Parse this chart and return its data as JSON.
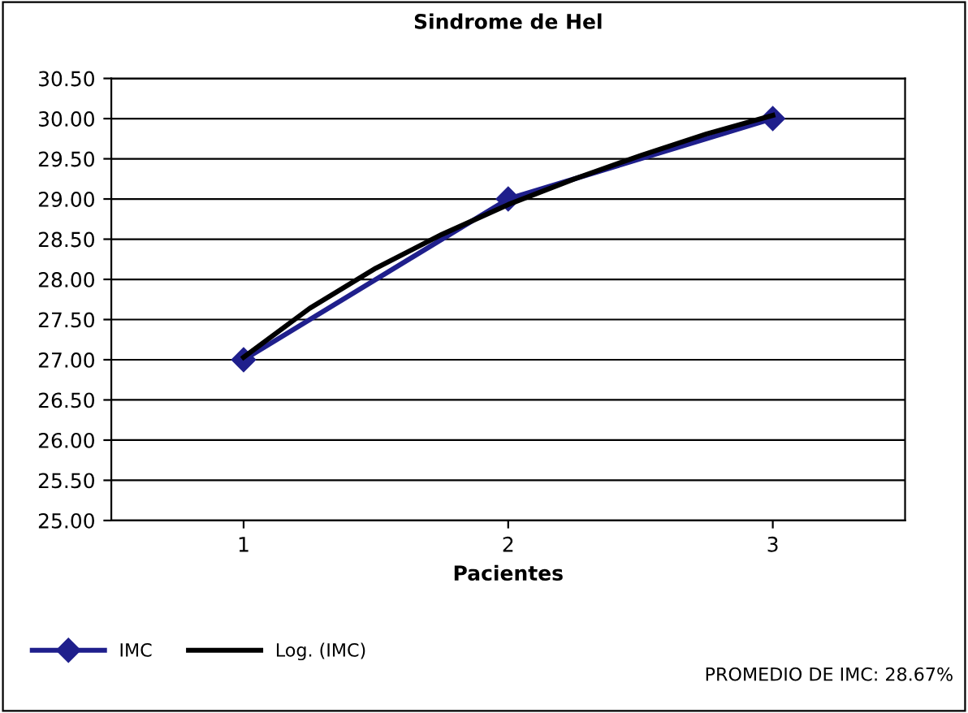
{
  "chart_data": {
    "type": "line",
    "title": "Sindrome de Hel",
    "xlabel": "Pacientes",
    "xlim": [
      0.5,
      3.5
    ],
    "xticks": [
      1,
      2,
      3
    ],
    "ylim": [
      25,
      30.5
    ],
    "yticks": [
      {
        "value": 25,
        "label": "25.00"
      },
      {
        "value": 25.5,
        "label": "25.50"
      },
      {
        "value": 26,
        "label": "26.00"
      },
      {
        "value": 26.5,
        "label": "26.50"
      },
      {
        "value": 27,
        "label": "27.00"
      },
      {
        "value": 27.5,
        "label": "27.50"
      },
      {
        "value": 28,
        "label": "28.00"
      },
      {
        "value": 28.5,
        "label": "28.50"
      },
      {
        "value": 29,
        "label": "29.00"
      },
      {
        "value": 29.5,
        "label": "29.50"
      },
      {
        "value": 30,
        "label": "30.00"
      },
      {
        "value": 30.5,
        "label": "30.50"
      }
    ],
    "grid": "y",
    "legend": "bottom",
    "series": [
      {
        "name": "IMC",
        "color": "#1f1f8c",
        "x": [
          1,
          2,
          3
        ],
        "values": [
          27,
          29,
          30
        ],
        "marker": "diamond"
      },
      {
        "name": "Log. (IMC)",
        "type": "line",
        "color": "#000000",
        "x": [
          1,
          1.25,
          1.5,
          1.75,
          2,
          2.25,
          2.5,
          2.75,
          3
        ],
        "values": [
          27.03,
          27.64,
          28.14,
          28.56,
          28.93,
          29.25,
          29.54,
          29.81,
          30.04
        ],
        "marker": "none"
      }
    ],
    "annotations": [
      "PROMEDIO DE IMC: 28.67%"
    ]
  }
}
